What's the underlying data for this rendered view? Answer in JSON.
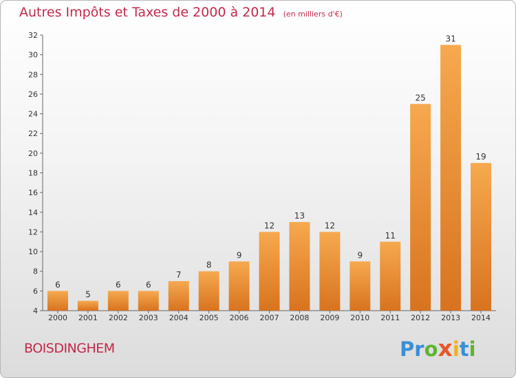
{
  "header": {
    "title": "Autres Impôts et Taxes de 2000 à 2014",
    "unit": "(en milliers d'€)"
  },
  "footer": {
    "commune": "BOISDINGHEM",
    "logo_letters": [
      "P",
      "r",
      "o",
      "x",
      "i",
      "t",
      "i"
    ]
  },
  "colors": {
    "title": "#c2294a",
    "bar_light": "#f6a94f",
    "bar_dark": "#d8731f",
    "logo": [
      "#3a8fd6",
      "#3a8fd6",
      "#5cb531",
      "#e8572a",
      "#f2b01c",
      "#3a8fd6",
      "#5cb531"
    ]
  },
  "chart_data": {
    "type": "bar",
    "title": "Autres Impôts et Taxes de 2000 à 2014",
    "subtitle": "(en milliers d'€)",
    "categories": [
      "2000",
      "2001",
      "2002",
      "2003",
      "2004",
      "2005",
      "2006",
      "2007",
      "2008",
      "2009",
      "2010",
      "2011",
      "2012",
      "2013",
      "2014"
    ],
    "values": [
      6,
      5,
      6,
      6,
      7,
      8,
      9,
      12,
      13,
      12,
      9,
      11,
      25,
      31,
      19
    ],
    "ylim": [
      4,
      32
    ],
    "yticks": [
      4,
      6,
      8,
      10,
      12,
      14,
      16,
      18,
      20,
      22,
      24,
      26,
      28,
      30,
      32
    ],
    "grid": false,
    "data_labels": true
  }
}
